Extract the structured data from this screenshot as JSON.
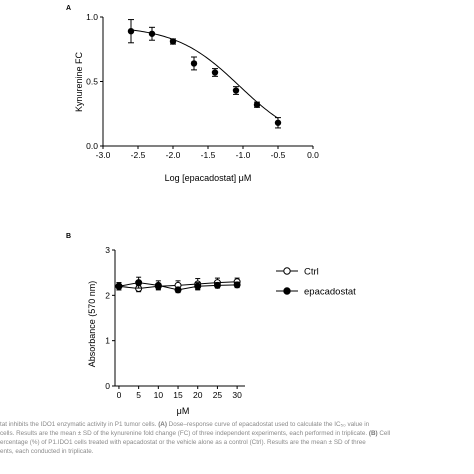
{
  "panel_a": {
    "panel_label": "A",
    "chart_data": {
      "type": "line",
      "xlabel": "Log [epacadostat] μM",
      "ylabel": "Kynurenine FC",
      "xlim": [
        -3.0,
        0.0
      ],
      "ylim": [
        0.0,
        1.0
      ],
      "x_ticks": [
        "-3.0",
        "-2.5",
        "-2.0",
        "-1.5",
        "-1.0",
        "-0.5",
        "0.0"
      ],
      "y_ticks": [
        "0.0",
        "0.5",
        "1.0"
      ],
      "grid": false,
      "series": [
        {
          "marker": "filled-circle",
          "x": [
            -2.6,
            -2.3,
            -2.0,
            -1.7,
            -1.4,
            -1.1,
            -0.8,
            -0.5
          ],
          "y": [
            0.89,
            0.87,
            0.81,
            0.64,
            0.57,
            0.43,
            0.32,
            0.18
          ],
          "err": [
            0.09,
            0.05,
            0.02,
            0.05,
            0.03,
            0.03,
            0.02,
            0.04
          ]
        }
      ],
      "fit": {
        "type": "sigmoid",
        "top": 0.93,
        "bottom": 0.0,
        "log_ic50": -1.05,
        "hill": 0.95
      }
    }
  },
  "panel_b": {
    "panel_label": "B",
    "chart_data": {
      "type": "line",
      "xlabel": "μM",
      "ylabel": "Absorbance (570 nm)",
      "xlim": [
        -1,
        32
      ],
      "ylim": [
        0,
        3
      ],
      "x_ticks": [
        "0",
        "5",
        "10",
        "15",
        "20",
        "25",
        "30"
      ],
      "y_ticks": [
        "0",
        "1",
        "2",
        "3"
      ],
      "grid": false,
      "legend_position": "right",
      "series": [
        {
          "name": "Ctrl",
          "marker": "open-circle",
          "x": [
            0,
            5,
            10,
            15,
            20,
            25,
            30
          ],
          "y": [
            2.2,
            2.15,
            2.2,
            2.22,
            2.25,
            2.28,
            2.3
          ],
          "err": [
            0.08,
            0.07,
            0.06,
            0.1,
            0.12,
            0.1,
            0.08
          ]
        },
        {
          "name": "epacadostat",
          "marker": "filled-circle",
          "x": [
            0,
            5,
            10,
            15,
            20,
            25,
            30
          ],
          "y": [
            2.2,
            2.28,
            2.22,
            2.12,
            2.2,
            2.22,
            2.23
          ],
          "err": [
            0.08,
            0.12,
            0.1,
            0.06,
            0.08,
            0.06,
            0.06
          ]
        }
      ]
    }
  },
  "caption": {
    "line1_pre": "tat inhibits the IDO1 enzymatic activity in P1 tumor cells. ",
    "line1_a": "(A)",
    "line1_post": " Dose–response curve of epacadostat used to calculate the IC₅₀ value in",
    "line2_pre": "cells. Results are the mean ± SD of the kynurenine fold change (FC) of three independent experiments, each performed in triplicate. ",
    "line2_b": "(B)",
    "line2_post": " Cell",
    "line3": "ercentage (%) of P1.IDO1 cells treated with epacadostat or the vehicle alone as a control (Ctrl). Results are the mean ± SD of three",
    "line4": "ents, each conducted in triplicate."
  }
}
